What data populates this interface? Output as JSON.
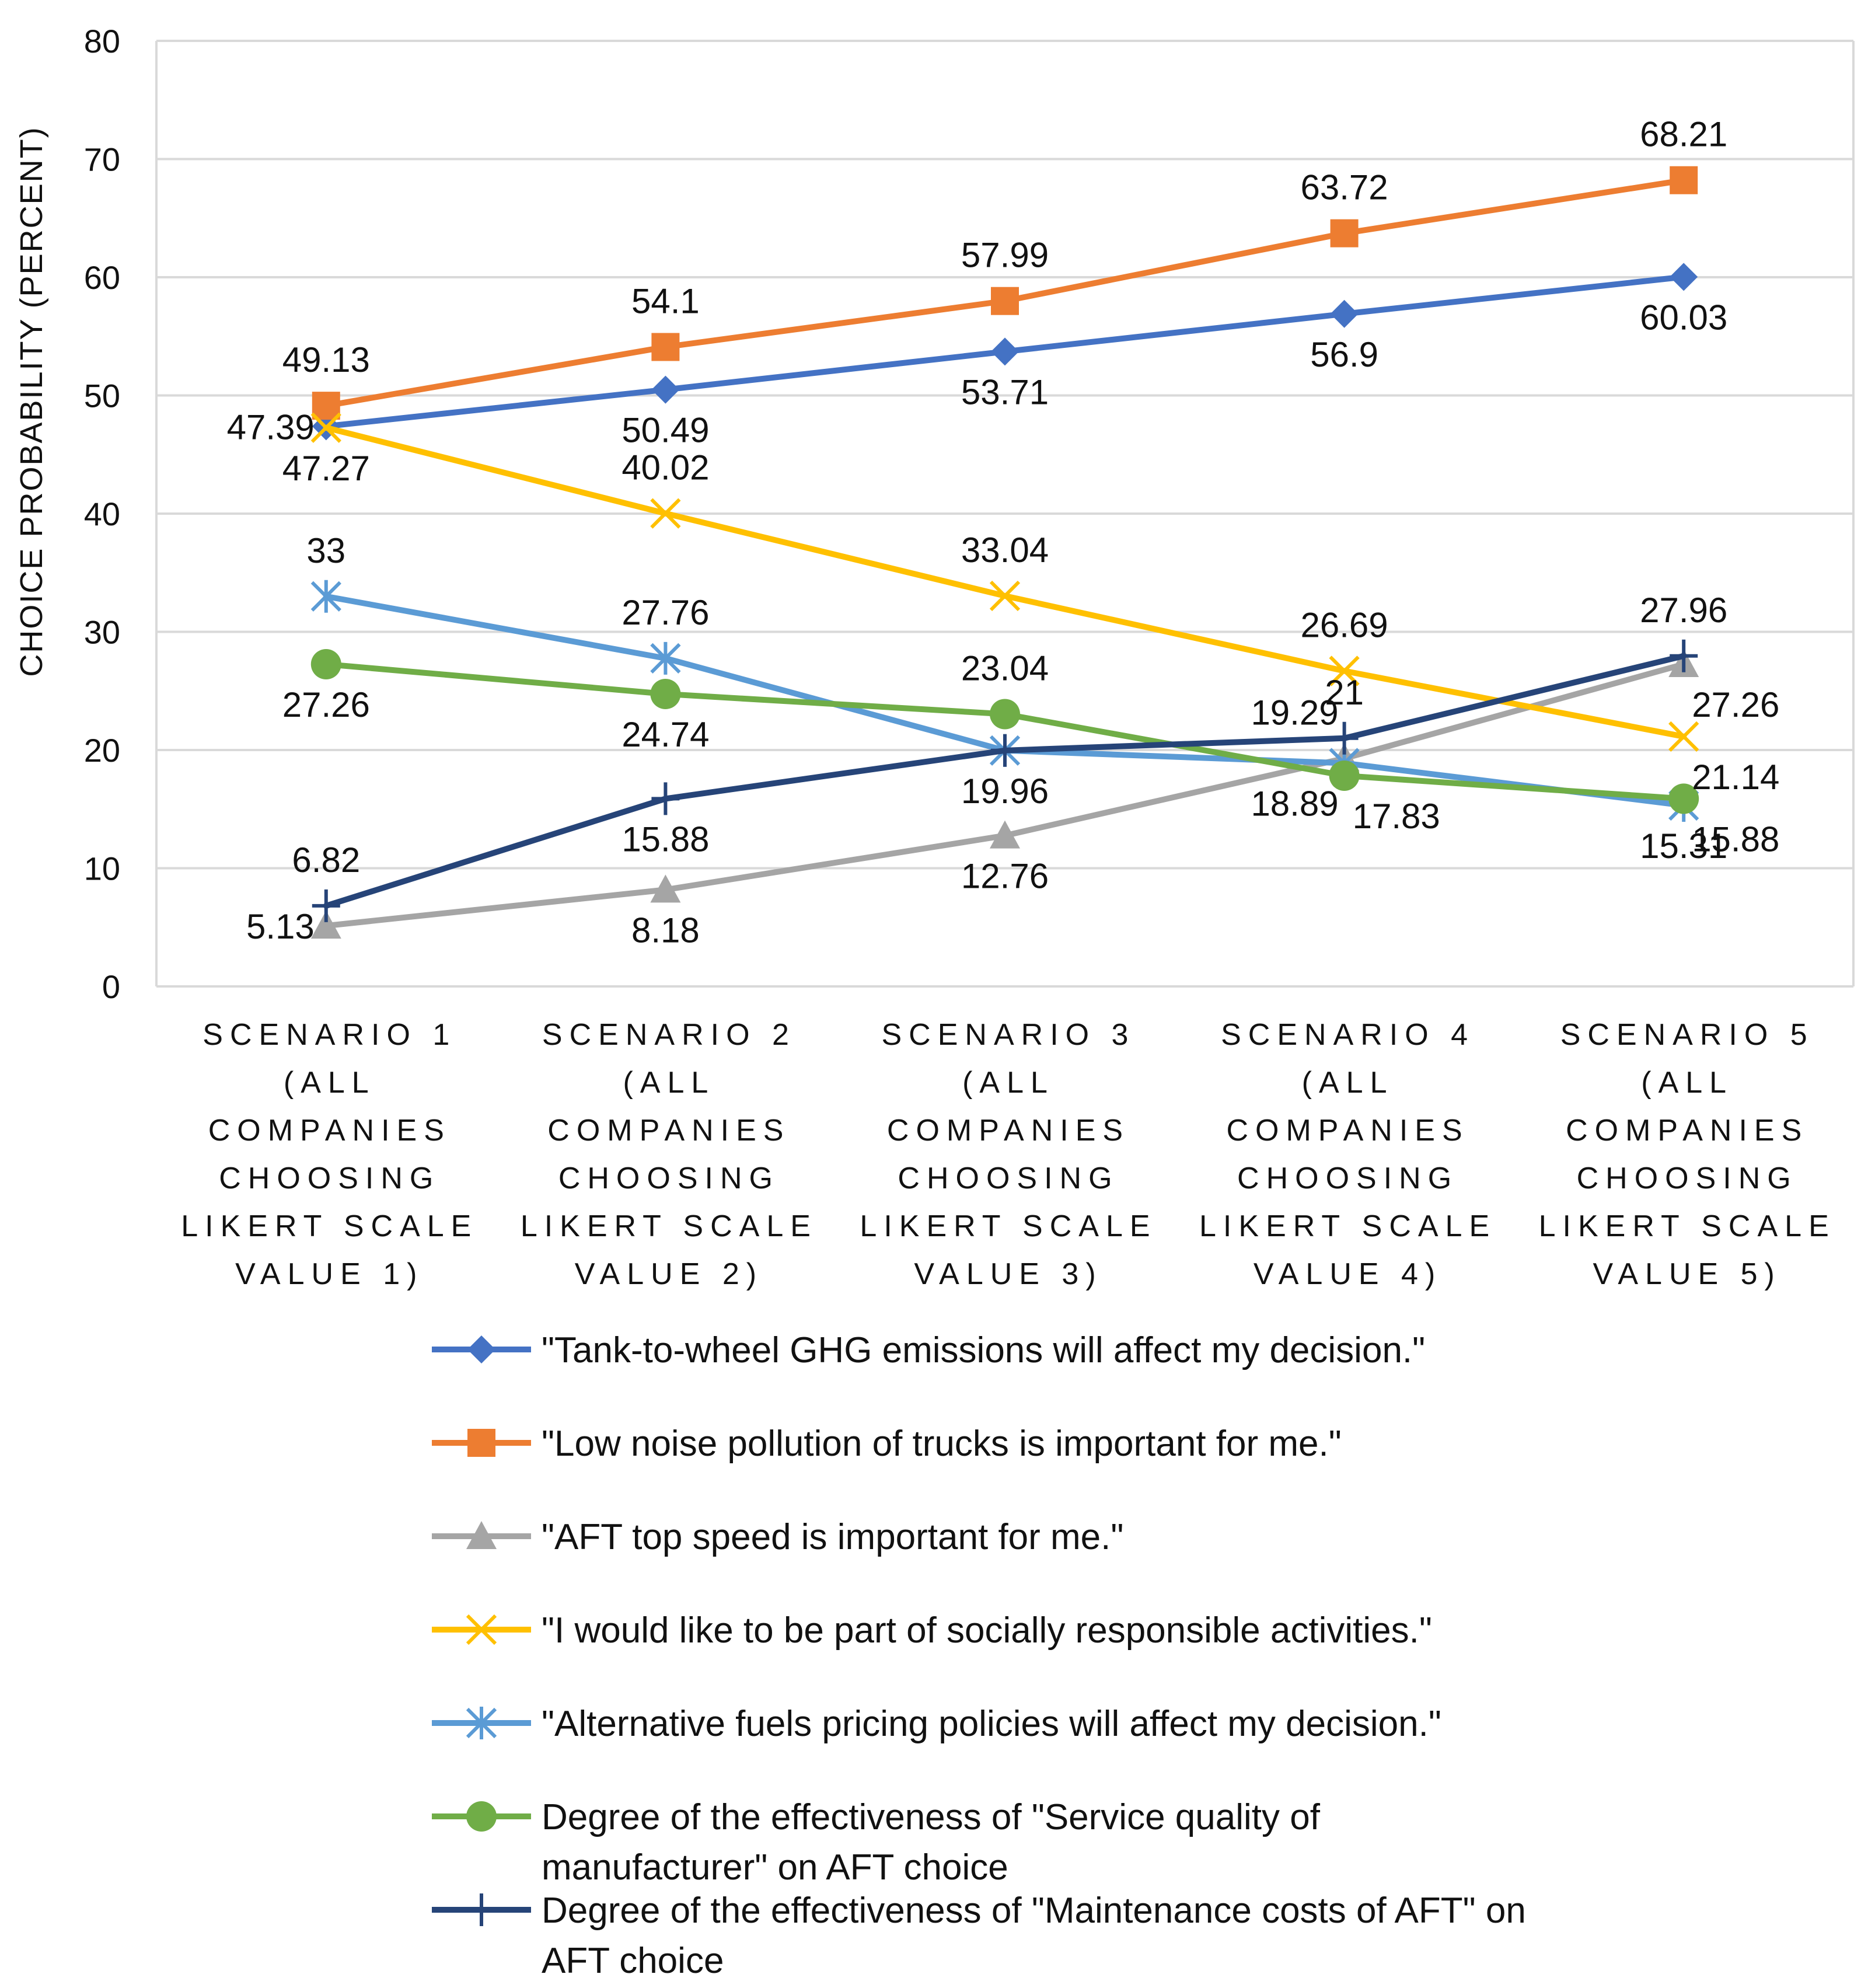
{
  "chart_data": {
    "type": "line",
    "title": "",
    "xlabel": "",
    "ylabel": "CHOICE PROBABILITY (PERCENT)",
    "ylim": [
      0,
      80
    ],
    "yticks": [
      "0",
      "10",
      "20",
      "30",
      "40",
      "50",
      "60",
      "70",
      "80"
    ],
    "grid": true,
    "legend_position": "bottom",
    "categories": [
      [
        "SCENARIO 1",
        "(ALL",
        "COMPANIES",
        "CHOOSING",
        "LIKERT SCALE",
        "VALUE 1)"
      ],
      [
        "SCENARIO 2",
        "(ALL",
        "COMPANIES",
        "CHOOSING",
        "LIKERT SCALE",
        "VALUE 2)"
      ],
      [
        "SCENARIO 3",
        "(ALL",
        "COMPANIES",
        "CHOOSING",
        "LIKERT SCALE",
        "VALUE 3)"
      ],
      [
        "SCENARIO 4",
        "(ALL",
        "COMPANIES",
        "CHOOSING",
        "LIKERT SCALE",
        "VALUE 4)"
      ],
      [
        "SCENARIO 5",
        "(ALL",
        "COMPANIES",
        "CHOOSING",
        "LIKERT SCALE",
        "VALUE 5)"
      ]
    ],
    "series": [
      {
        "name": "\"Tank-to-wheel GHG emissions will affect my decision.\"",
        "legend_lines": [
          "\"Tank-to-wheel GHG emissions will affect my decision.\""
        ],
        "color": "#4472C4",
        "marker": "diamond",
        "values": [
          47.39,
          50.49,
          53.71,
          56.9,
          60.03
        ],
        "labels": [
          "47.39",
          "50.49",
          "53.71",
          "56.9",
          "60.03"
        ],
        "label_pos": [
          "left",
          "below",
          "below",
          "below",
          "below"
        ]
      },
      {
        "name": "\"Low noise pollution of trucks is important for me.\"",
        "legend_lines": [
          "\"Low noise pollution of trucks is important for me.\""
        ],
        "color": "#ED7D31",
        "marker": "square",
        "values": [
          49.13,
          54.1,
          57.99,
          63.72,
          68.21
        ],
        "labels": [
          "49.13",
          "54.1",
          "57.99",
          "63.72",
          "68.21"
        ],
        "label_pos": [
          "above",
          "above",
          "above",
          "above",
          "above"
        ]
      },
      {
        "name": "\"AFT top speed is important for me.\"",
        "legend_lines": [
          "\"AFT top speed is important for me.\""
        ],
        "color": "#A5A5A5",
        "marker": "triangle",
        "values": [
          5.13,
          8.18,
          12.76,
          19.29,
          27.26
        ],
        "labels": [
          "5.13",
          "8.18",
          "12.76",
          "19.29",
          "27.26"
        ],
        "label_pos": [
          "left",
          "below",
          "below",
          "aboveleft",
          "belowright"
        ]
      },
      {
        "name": "\"I would like to be part of socially responsible activities.\"",
        "legend_lines": [
          "\"I would like to be part of socially responsible activities.\""
        ],
        "color": "#FFC000",
        "marker": "x",
        "values": [
          47.27,
          40.02,
          33.04,
          26.69,
          21.14
        ],
        "labels": [
          "47.27",
          "40.02",
          "33.04",
          "26.69",
          "21.14"
        ],
        "label_pos": [
          "below",
          "above",
          "above",
          "above",
          "belowright"
        ]
      },
      {
        "name": "\"Alternative fuels pricing policies will affect my decision.\"",
        "legend_lines": [
          "\"Alternative fuels pricing policies will affect my decision.\""
        ],
        "color": "#5B9BD5",
        "marker": "star",
        "values": [
          33,
          27.76,
          19.96,
          18.89,
          15.31
        ],
        "labels": [
          "33",
          "27.76",
          "19.96",
          "18.89",
          "15.31"
        ],
        "label_pos": [
          "above",
          "above",
          "below",
          "belowleft",
          "below"
        ]
      },
      {
        "name": "Degree of the effectiveness of \"Service quality of manufacturer\" on AFT choice",
        "legend_lines": [
          "Degree of the effectiveness of \"Service quality of",
          "manufacturer\" on AFT choice"
        ],
        "color": "#70AD47",
        "marker": "circle",
        "values": [
          27.26,
          24.74,
          23.04,
          17.83,
          15.88
        ],
        "labels": [
          "27.26",
          "24.74",
          "23.04",
          "17.83",
          "15.88"
        ],
        "label_pos": [
          "below",
          "below",
          "above",
          "belowright",
          "belowright"
        ]
      },
      {
        "name": "Degree of the effectiveness of \"Maintenance costs of AFT\" on AFT choice",
        "legend_lines": [
          "Degree of the effectiveness of \"Maintenance costs of AFT\" on",
          "AFT choice"
        ],
        "color": "#264478",
        "marker": "plus",
        "values": [
          6.82,
          15.88,
          19.96,
          21,
          27.96
        ],
        "labels": [
          "6.82",
          "15.88",
          "19.96",
          "21",
          "27.96"
        ],
        "label_pos": [
          "above",
          "below",
          "hidden",
          "above",
          "above"
        ]
      }
    ]
  }
}
